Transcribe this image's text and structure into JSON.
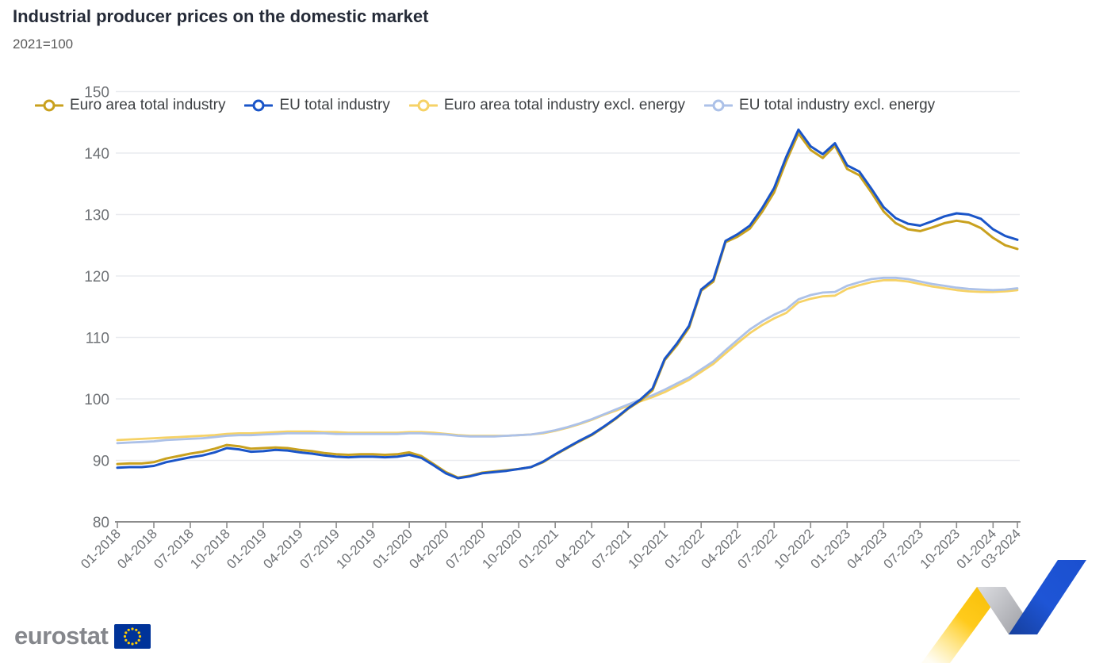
{
  "header": {
    "title": "Industrial producer prices on the domestic market",
    "subtitle": "2021=100"
  },
  "chart_data": {
    "type": "line",
    "title": "Industrial producer prices on the domestic market",
    "subtitle": "2021=100",
    "ylim": [
      80,
      150
    ],
    "y_ticks": [
      80,
      90,
      100,
      110,
      120,
      130,
      140,
      150
    ],
    "grid": true,
    "legend_position": "top",
    "x_tick_labels": [
      "01-2018",
      "04-2018",
      "07-2018",
      "10-2018",
      "01-2019",
      "04-2019",
      "07-2019",
      "10-2019",
      "01-2020",
      "04-2020",
      "07-2020",
      "10-2020",
      "01-2021",
      "04-2021",
      "07-2021",
      "10-2021",
      "01-2022",
      "04-2022",
      "07-2022",
      "10-2022",
      "01-2023",
      "04-2023",
      "07-2023",
      "10-2023",
      "01-2024",
      "03-2024"
    ],
    "x": [
      "01-2018",
      "02-2018",
      "03-2018",
      "04-2018",
      "05-2018",
      "06-2018",
      "07-2018",
      "08-2018",
      "09-2018",
      "10-2018",
      "11-2018",
      "12-2018",
      "01-2019",
      "02-2019",
      "03-2019",
      "04-2019",
      "05-2019",
      "06-2019",
      "07-2019",
      "08-2019",
      "09-2019",
      "10-2019",
      "11-2019",
      "12-2019",
      "01-2020",
      "02-2020",
      "03-2020",
      "04-2020",
      "05-2020",
      "06-2020",
      "07-2020",
      "08-2020",
      "09-2020",
      "10-2020",
      "11-2020",
      "12-2020",
      "01-2021",
      "02-2021",
      "03-2021",
      "04-2021",
      "05-2021",
      "06-2021",
      "07-2021",
      "08-2021",
      "09-2021",
      "10-2021",
      "11-2021",
      "12-2021",
      "01-2022",
      "02-2022",
      "03-2022",
      "04-2022",
      "05-2022",
      "06-2022",
      "07-2022",
      "08-2022",
      "09-2022",
      "10-2022",
      "11-2022",
      "12-2022",
      "01-2023",
      "02-2023",
      "03-2023",
      "04-2023",
      "05-2023",
      "06-2023",
      "07-2023",
      "08-2023",
      "09-2023",
      "10-2023",
      "11-2023",
      "12-2023",
      "01-2024",
      "02-2024",
      "03-2024"
    ],
    "series": [
      {
        "name": "Euro area total industry",
        "color": "#C9A11E",
        "stroke_width": 3,
        "values": [
          89.4,
          89.5,
          89.5,
          89.7,
          90.3,
          90.7,
          91.1,
          91.4,
          91.9,
          92.5,
          92.3,
          91.9,
          92.0,
          92.1,
          92.0,
          91.7,
          91.5,
          91.2,
          91.0,
          90.9,
          91.0,
          91.0,
          90.9,
          91.0,
          91.3,
          90.7,
          89.4,
          88.1,
          87.2,
          87.5,
          88.0,
          88.2,
          88.4,
          88.6,
          88.9,
          89.7,
          90.9,
          92.0,
          93.1,
          94.1,
          95.4,
          96.8,
          98.4,
          99.7,
          101.4,
          106.3,
          108.7,
          111.6,
          117.6,
          119.1,
          125.5,
          126.4,
          127.7,
          130.4,
          133.6,
          138.7,
          143.2,
          140.5,
          139.2,
          141.2,
          137.4,
          136.4,
          133.6,
          130.5,
          128.6,
          127.6,
          127.3,
          127.9,
          128.6,
          129.0,
          128.7,
          127.8,
          126.2,
          125.0,
          124.4
        ]
      },
      {
        "name": "EU total industry",
        "color": "#1A55C8",
        "stroke_width": 3,
        "values": [
          88.8,
          88.9,
          88.9,
          89.1,
          89.7,
          90.1,
          90.5,
          90.8,
          91.3,
          92.0,
          91.8,
          91.4,
          91.5,
          91.7,
          91.6,
          91.3,
          91.1,
          90.8,
          90.6,
          90.5,
          90.6,
          90.6,
          90.5,
          90.6,
          90.9,
          90.4,
          89.2,
          87.9,
          87.1,
          87.4,
          87.9,
          88.1,
          88.3,
          88.6,
          88.9,
          89.8,
          91.0,
          92.1,
          93.2,
          94.2,
          95.5,
          96.9,
          98.5,
          99.9,
          101.7,
          106.5,
          109.0,
          111.9,
          117.8,
          119.4,
          125.7,
          126.8,
          128.2,
          131.0,
          134.3,
          139.4,
          143.8,
          141.1,
          139.8,
          141.6,
          138.0,
          137.0,
          134.2,
          131.2,
          129.4,
          128.5,
          128.2,
          128.9,
          129.7,
          130.2,
          130.0,
          129.3,
          127.6,
          126.5,
          125.9
        ]
      },
      {
        "name": "Euro area total industry excl. energy",
        "color": "#F6D266",
        "stroke_width": 2.8,
        "values": [
          93.3,
          93.4,
          93.5,
          93.6,
          93.7,
          93.8,
          93.9,
          94.0,
          94.1,
          94.3,
          94.4,
          94.4,
          94.5,
          94.6,
          94.7,
          94.7,
          94.7,
          94.6,
          94.6,
          94.5,
          94.5,
          94.5,
          94.5,
          94.5,
          94.6,
          94.6,
          94.5,
          94.3,
          94.1,
          94.0,
          94.0,
          94.0,
          94.0,
          94.1,
          94.2,
          94.4,
          94.8,
          95.3,
          95.9,
          96.6,
          97.4,
          98.1,
          98.9,
          99.6,
          100.3,
          101.1,
          102.1,
          103.1,
          104.4,
          105.7,
          107.4,
          109.1,
          110.7,
          112.0,
          113.1,
          114.0,
          115.7,
          116.3,
          116.7,
          116.8,
          117.9,
          118.5,
          119.0,
          119.3,
          119.3,
          119.1,
          118.7,
          118.3,
          118.0,
          117.7,
          117.5,
          117.4,
          117.4,
          117.5,
          117.7
        ]
      },
      {
        "name": "EU total industry excl. energy",
        "color": "#ACC1E8",
        "stroke_width": 2.8,
        "values": [
          92.8,
          92.9,
          93.0,
          93.1,
          93.3,
          93.4,
          93.5,
          93.6,
          93.8,
          94.0,
          94.1,
          94.1,
          94.2,
          94.3,
          94.4,
          94.4,
          94.4,
          94.4,
          94.3,
          94.3,
          94.3,
          94.3,
          94.3,
          94.3,
          94.4,
          94.4,
          94.3,
          94.2,
          94.0,
          93.9,
          93.9,
          93.9,
          94.0,
          94.1,
          94.2,
          94.5,
          94.9,
          95.4,
          96.0,
          96.7,
          97.5,
          98.3,
          99.1,
          99.9,
          100.6,
          101.5,
          102.5,
          103.5,
          104.8,
          106.1,
          107.9,
          109.6,
          111.3,
          112.6,
          113.7,
          114.6,
          116.2,
          116.9,
          117.3,
          117.4,
          118.4,
          119.0,
          119.5,
          119.7,
          119.7,
          119.5,
          119.1,
          118.7,
          118.4,
          118.1,
          117.9,
          117.8,
          117.7,
          117.8,
          118.0
        ]
      }
    ]
  },
  "style_colors": {
    "grid": "#e9ebef",
    "axis": "#8c8c8c",
    "tick_label": "#6f7276",
    "legend_text": "#3d4043"
  },
  "footer": {
    "logo_text": "eurostat",
    "flag_bg": "#003399",
    "flag_stars": "#FFCC00",
    "decoration": {
      "yellow": "#FFC810",
      "gray_light": "#D4D5D9",
      "gray_dark": "#96979D",
      "blue_dark": "#16409F",
      "blue_bright": "#1E55D6"
    }
  }
}
